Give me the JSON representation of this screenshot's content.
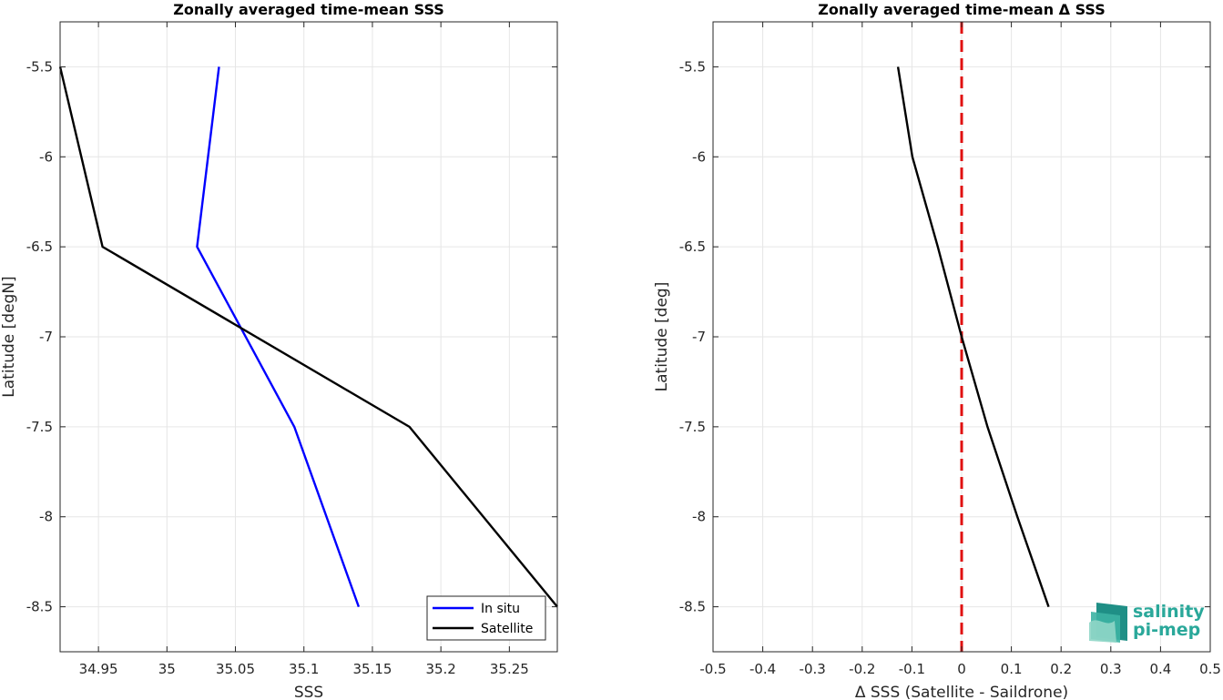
{
  "chart_data": [
    {
      "type": "line",
      "title": "Zonally averaged time-mean SSS",
      "xlabel": "SSS",
      "ylabel": "Latitude [degN]",
      "xlim": [
        34.922,
        35.285
      ],
      "ylim": [
        -8.75,
        -5.25
      ],
      "xticks": [
        34.95,
        35,
        35.05,
        35.1,
        35.15,
        35.2,
        35.25
      ],
      "xtick_labels": [
        "34.95",
        "35",
        "35.05",
        "35.1",
        "35.15",
        "35.2",
        "35.25"
      ],
      "yticks": [
        -5.5,
        -6,
        -6.5,
        -7,
        -7.5,
        -8,
        -8.5
      ],
      "ytick_labels": [
        "-5.5",
        "-6",
        "-6.5",
        "-7",
        "-7.5",
        "-8",
        "-8.5"
      ],
      "grid": true,
      "legend": "bottom-right",
      "series": [
        {
          "name": "In situ",
          "color": "#0000ff",
          "points": [
            [
              35.038,
              -5.5
            ],
            [
              35.022,
              -6.5
            ],
            [
              35.093,
              -7.5
            ],
            [
              35.14,
              -8.5
            ]
          ]
        },
        {
          "name": "Satellite",
          "color": "#000000",
          "points": [
            [
              34.922,
              -5.5
            ],
            [
              34.953,
              -6.5
            ],
            [
              35.177,
              -7.5
            ],
            [
              35.285,
              -8.5
            ]
          ]
        }
      ]
    },
    {
      "type": "line",
      "title": "Zonally averaged time-mean Δ SSS",
      "xlabel": "Δ SSS (Satellite - Saildrone)",
      "ylabel": "Latitude [deg]",
      "xlim": [
        -0.5,
        0.5
      ],
      "ylim": [
        -8.75,
        -5.25
      ],
      "xticks": [
        -0.5,
        -0.4,
        -0.3,
        -0.2,
        -0.1,
        0,
        0.1,
        0.2,
        0.3,
        0.4,
        0.5
      ],
      "xtick_labels": [
        "-0.5",
        "-0.4",
        "-0.3",
        "-0.2",
        "-0.1",
        "0",
        "0.1",
        "0.2",
        "0.3",
        "0.4",
        "0.5"
      ],
      "yticks": [
        -5.5,
        -6,
        -6.5,
        -7,
        -7.5,
        -8,
        -8.5
      ],
      "ytick_labels": [
        "-5.5",
        "-6",
        "-6.5",
        "-7",
        "-7.5",
        "-8",
        "-8.5"
      ],
      "grid": true,
      "reference_line": {
        "x": 0,
        "color": "#e01010",
        "style": "dashed"
      },
      "series": [
        {
          "color": "#000000",
          "points": [
            [
              -0.128,
              -5.5
            ],
            [
              -0.099,
              -6
            ],
            [
              -0.048,
              -6.5
            ],
            [
              0,
              -7
            ],
            [
              0.052,
              -7.5
            ],
            [
              0.112,
              -8
            ],
            [
              0.175,
              -8.5
            ]
          ]
        }
      ]
    }
  ],
  "logo": {
    "line1": "salinity",
    "line2": "pi-mep",
    "color": "#2aa89a"
  }
}
